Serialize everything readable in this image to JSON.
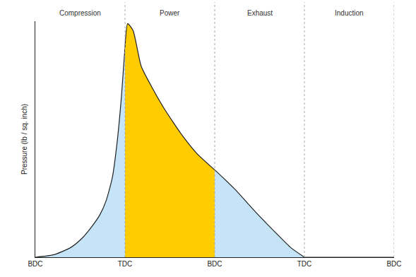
{
  "chart_data": {
    "type": "area",
    "y_label": "Pressure (lb / sq. inch)",
    "xlim": [
      0,
      4
    ],
    "xticks": [
      {
        "value": 0,
        "label": "BDC"
      },
      {
        "value": 1,
        "label": "TDC"
      },
      {
        "value": 2,
        "label": "BDC"
      },
      {
        "value": 3,
        "label": "TDC"
      },
      {
        "value": 4,
        "label": "BDC"
      }
    ],
    "ylim": [
      0,
      100
    ],
    "yticks": [],
    "tick_labels": "x",
    "grid": false,
    "series": [
      {
        "name": "Compression",
        "color": "#c6e4f7",
        "x": [
          0,
          0.2,
          0.39,
          0.52,
          0.63,
          0.72,
          0.79,
          0.86,
          0.91,
          0.96,
          1.0
        ],
        "values": [
          0,
          1,
          4,
          8,
          13,
          18,
          24,
          34,
          48,
          68,
          89
        ]
      },
      {
        "name": "Power",
        "color": "#ffcc00",
        "x": [
          1.0,
          1.03,
          1.09,
          1.18,
          1.3,
          1.42,
          1.54,
          1.65,
          1.8,
          2.0
        ],
        "values": [
          89,
          99,
          96,
          81,
          72,
          64,
          57,
          51,
          44,
          37
        ]
      },
      {
        "name": "Exhaust",
        "color": "#c6e4f7",
        "x": [
          2.0,
          2.22,
          2.46,
          2.69,
          2.85,
          3.0
        ],
        "values": [
          37,
          29,
          19,
          10,
          4,
          0
        ]
      },
      {
        "name": "Induction",
        "x": [
          3.0,
          4.0
        ],
        "values": [
          0,
          0
        ]
      }
    ]
  }
}
